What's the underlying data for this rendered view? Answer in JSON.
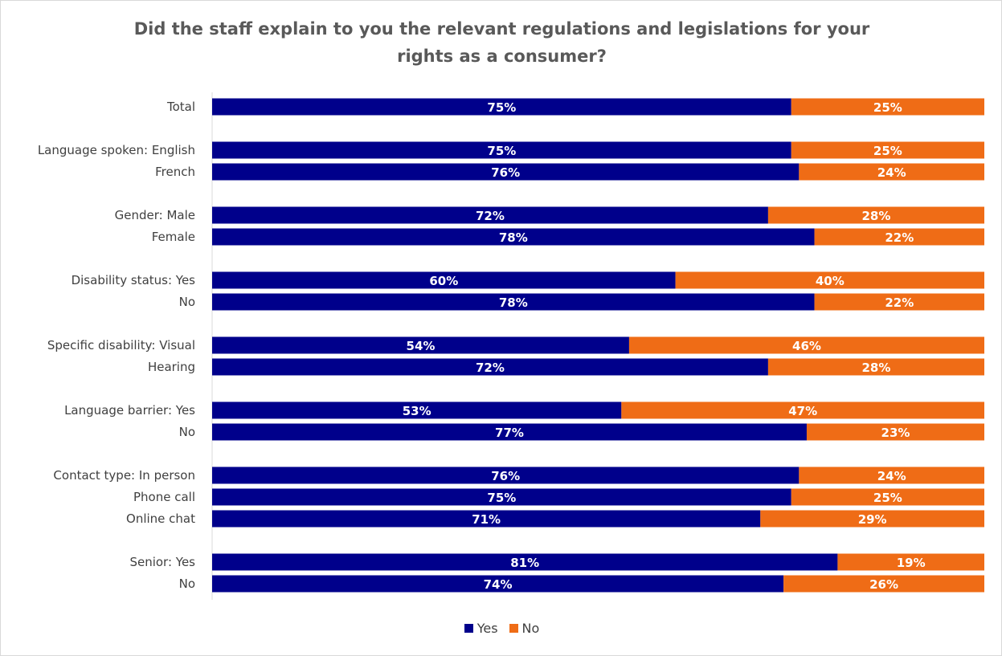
{
  "chart_data": {
    "type": "bar",
    "orientation": "horizontal",
    "stacked": true,
    "percent_stacked": true,
    "title": "Did the staff explain to you the relevant regulations and legislations for your\nrights as a consumer?",
    "categories": [
      "Total",
      "Language spoken: English",
      "French",
      "Gender: Male",
      "Female",
      "Disability status: Yes",
      "No",
      "Specific disability: Visual",
      "Hearing",
      "Language barrier: Yes",
      "No",
      "Contact type: In person",
      "Phone call",
      "Online chat",
      "Senior: Yes",
      "No"
    ],
    "groups": [
      1,
      2,
      2,
      2,
      2,
      2,
      3,
      2
    ],
    "series": [
      {
        "name": "Yes",
        "color": "#00008b",
        "values": [
          75,
          75,
          76,
          72,
          78,
          60,
          78,
          54,
          72,
          53,
          77,
          76,
          75,
          71,
          81,
          74
        ],
        "labels": [
          "75%",
          "75%",
          "76%",
          "72%",
          "78%",
          "60%",
          "78%",
          "54%",
          "72%",
          "53%",
          "77%",
          "76%",
          "75%",
          "71%",
          "81%",
          "74%"
        ]
      },
      {
        "name": "No",
        "color": "#ef6c16",
        "values": [
          25,
          25,
          24,
          28,
          22,
          40,
          22,
          46,
          28,
          47,
          23,
          24,
          25,
          29,
          19,
          26
        ],
        "labels": [
          "25%",
          "25%",
          "24%",
          "28%",
          "22%",
          "40%",
          "22%",
          "46%",
          "28%",
          "47%",
          "23%",
          "24%",
          "25%",
          "29%",
          "19%",
          "26%"
        ]
      }
    ],
    "xlim": [
      0,
      100
    ],
    "grid": false,
    "legend_position": "bottom"
  }
}
